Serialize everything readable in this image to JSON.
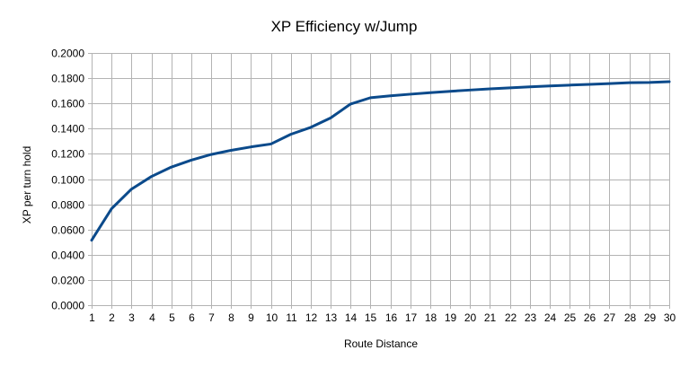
{
  "chart_data": {
    "type": "line",
    "title": "XP Efficiency w/Jump",
    "xlabel": "Route Distance",
    "ylabel": "XP per turn hold",
    "x": [
      1,
      2,
      3,
      4,
      5,
      6,
      7,
      8,
      9,
      10,
      11,
      12,
      13,
      14,
      15,
      16,
      17,
      18,
      19,
      20,
      21,
      22,
      23,
      24,
      25,
      26,
      27,
      28,
      29,
      30
    ],
    "series": [
      {
        "color": "#0b4a8b",
        "values": [
          0.0515,
          0.0765,
          0.092,
          0.102,
          0.1095,
          0.115,
          0.1195,
          0.1228,
          0.1255,
          0.1278,
          0.1355,
          0.141,
          0.1485,
          0.1595,
          0.1645,
          0.166,
          0.1673,
          0.1685,
          0.1696,
          0.1706,
          0.1715,
          0.1723,
          0.1731,
          0.1738,
          0.1745,
          0.1751,
          0.1757,
          0.1764,
          0.1766,
          0.1772
        ]
      }
    ],
    "ylim": [
      0,
      0.2
    ],
    "xlim": [
      1,
      30
    ],
    "y_ticks": [
      "0.0000",
      "0.0200",
      "0.0400",
      "0.0600",
      "0.0800",
      "0.1000",
      "0.1200",
      "0.1400",
      "0.1600",
      "0.1800",
      "0.2000"
    ],
    "x_ticks": [
      "1",
      "2",
      "3",
      "4",
      "5",
      "6",
      "7",
      "8",
      "9",
      "10",
      "11",
      "12",
      "13",
      "14",
      "15",
      "16",
      "17",
      "18",
      "19",
      "20",
      "21",
      "22",
      "23",
      "24",
      "25",
      "26",
      "27",
      "28",
      "29",
      "30"
    ],
    "grid": true,
    "legend": "none",
    "colors": {
      "grid": "#b3b3b3",
      "line": "#0b4a8b"
    }
  }
}
